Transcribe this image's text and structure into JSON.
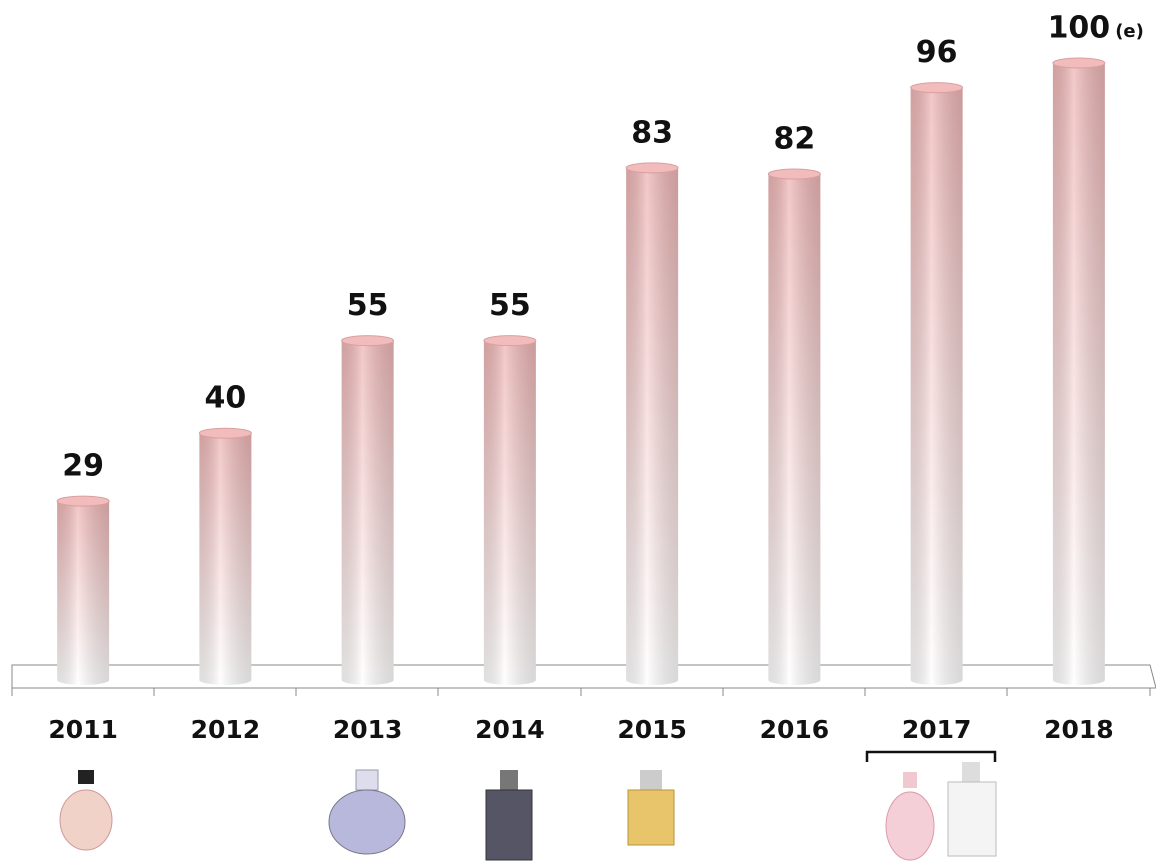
{
  "chart_data": {
    "type": "bar",
    "categories": [
      "2011",
      "2012",
      "2013",
      "2014",
      "2015",
      "2016",
      "2017",
      "2018"
    ],
    "values": [
      29,
      40,
      55,
      55,
      83,
      82,
      96,
      100
    ],
    "estimate_label": "(e)",
    "color": "#f2bcbc"
  }
}
